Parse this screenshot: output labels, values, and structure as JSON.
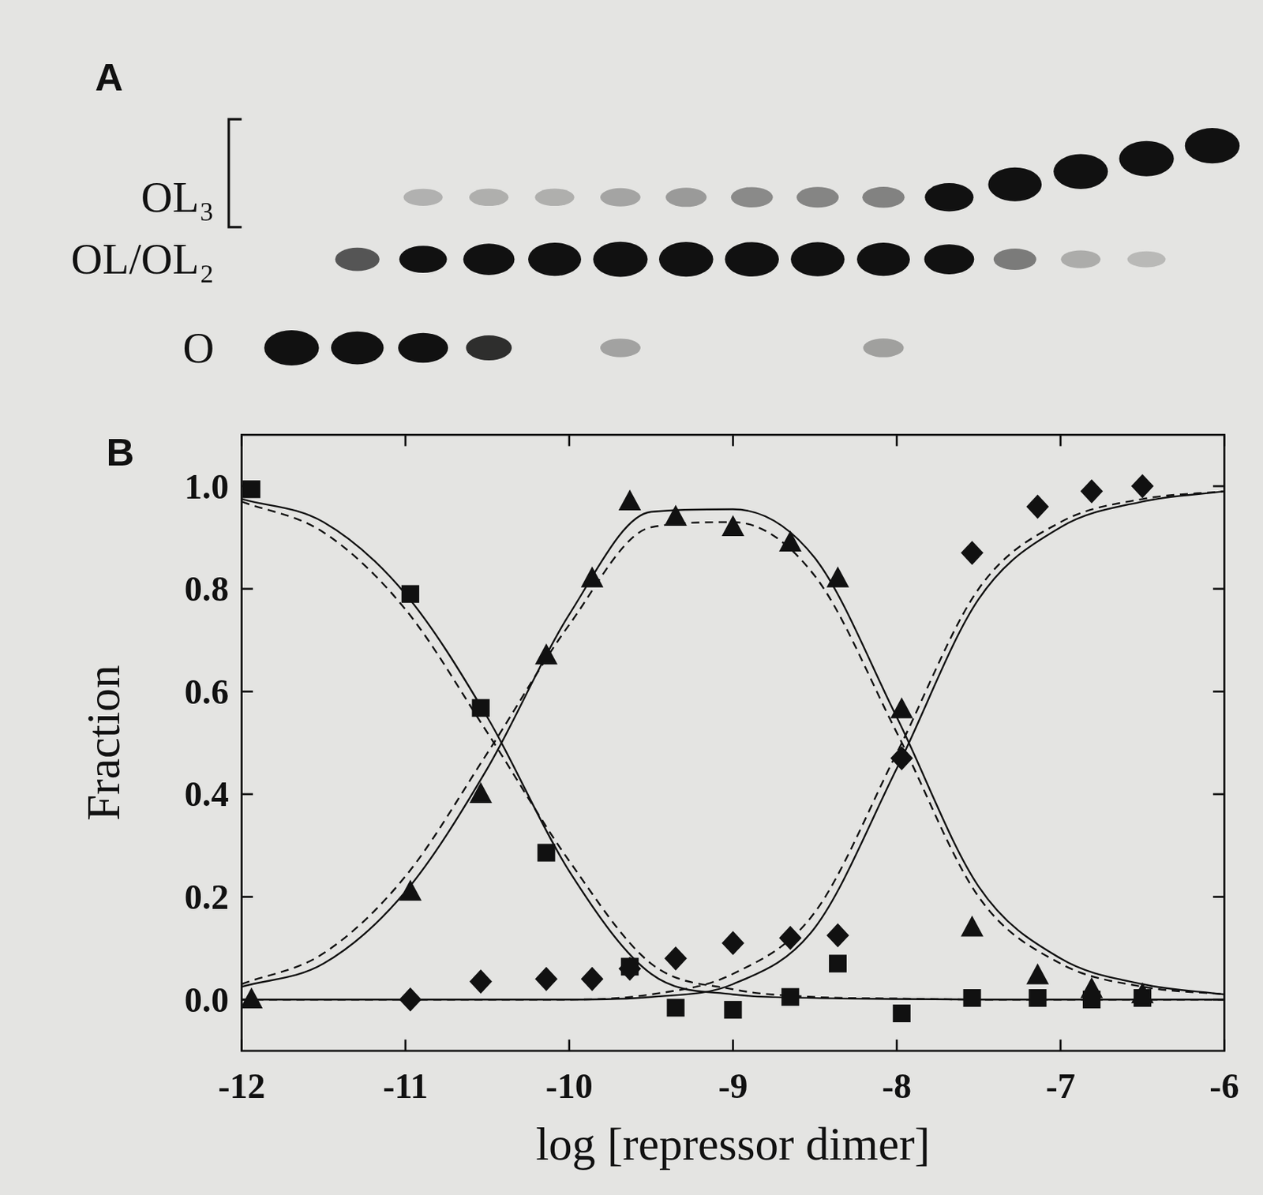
{
  "chart_data": {
    "type": "scatter",
    "panel_label": "B",
    "x_label": "log [repressor dimer]",
    "y_label": "Fraction",
    "xlim": [
      -12,
      -6
    ],
    "xticks": [
      -12,
      -11,
      -10,
      -9,
      -8,
      -7,
      -6
    ],
    "ylim": [
      -0.1,
      1.1
    ],
    "yticks": [
      {
        "value": 0,
        "label": "0.0"
      },
      0.2,
      0.4,
      0.6,
      0.8,
      {
        "value": 1,
        "label": "1.0"
      }
    ],
    "grid": false,
    "series": [
      {
        "type": "scatter",
        "marker": "square",
        "color": "#111111",
        "x": [
          -11.94,
          -10.97,
          -10.54,
          -10.14,
          -9.86,
          -9.63,
          -9.35,
          -9.0,
          -8.65,
          -8.36,
          -7.97,
          -7.54,
          -7.14,
          -6.81,
          -6.5
        ],
        "values": [
          0.994,
          0.79,
          0.568,
          0.286,
          null,
          0.064,
          -0.016,
          -0.02,
          0.005,
          0.07,
          -0.027,
          0.003,
          0.003,
          0.0,
          0.003
        ]
      },
      {
        "type": "scatter",
        "marker": "triangle",
        "color": "#111111",
        "x": [
          -11.94,
          -10.97,
          -10.54,
          -10.14,
          -9.86,
          -9.63,
          -9.35,
          -9.0,
          -8.65,
          -8.36,
          -7.97,
          -7.54,
          -7.14,
          -6.81,
          -6.5
        ],
        "values": [
          0.0,
          0.21,
          0.4,
          0.67,
          0.82,
          0.97,
          0.94,
          0.92,
          0.89,
          0.82,
          0.565,
          0.14,
          0.047,
          0.02,
          0.01
        ]
      },
      {
        "type": "scatter",
        "marker": "diamond",
        "color": "#111111",
        "x": [
          -11.94,
          -10.97,
          -10.54,
          -10.14,
          -9.86,
          -9.63,
          -9.35,
          -9.0,
          -8.65,
          -8.36,
          -7.97,
          -7.54,
          -7.14,
          -6.81,
          -6.5
        ],
        "values": [
          null,
          0.0,
          0.035,
          0.04,
          0.04,
          0.06,
          0.08,
          0.11,
          0.12,
          0.125,
          0.47,
          0.87,
          0.96,
          0.99,
          1.0
        ]
      },
      {
        "type": "line",
        "line_style": "solid",
        "color": "#111111",
        "x": [
          -12,
          -11.5,
          -11,
          -10.5,
          -10,
          -9.5,
          -9,
          -8.5,
          -8,
          -7.5,
          -7,
          -6.5,
          -6
        ],
        "values": [
          0.975,
          0.93,
          0.79,
          0.55,
          0.25,
          0.05,
          0.01,
          0.003,
          0.001,
          0,
          0,
          0,
          0
        ]
      },
      {
        "type": "line",
        "line_style": "dashed",
        "color": "#111111",
        "x": [
          -12,
          -11.5,
          -11,
          -10.5,
          -10,
          -9.5,
          -9,
          -8.5,
          -8,
          -7.5,
          -7,
          -6.5,
          -6
        ],
        "values": [
          0.97,
          0.91,
          0.76,
          0.52,
          0.27,
          0.07,
          0.02,
          0.005,
          0.002,
          0,
          0,
          0,
          0
        ]
      },
      {
        "type": "line",
        "line_style": "solid",
        "color": "#111111",
        "x": [
          -12,
          -11.5,
          -11,
          -10.5,
          -10,
          -9.5,
          -9,
          -8.5,
          -8,
          -7.5,
          -7,
          -6.5,
          -6
        ],
        "values": [
          0.025,
          0.07,
          0.21,
          0.45,
          0.75,
          0.95,
          0.955,
          0.86,
          0.55,
          0.22,
          0.08,
          0.03,
          0.01
        ]
      },
      {
        "type": "line",
        "line_style": "dashed",
        "color": "#111111",
        "x": [
          -12,
          -11.5,
          -11,
          -10.5,
          -10,
          -9.5,
          -9,
          -8.5,
          -8,
          -7.5,
          -7,
          -6.5,
          -6
        ],
        "values": [
          0.03,
          0.09,
          0.24,
          0.48,
          0.73,
          0.92,
          0.93,
          0.825,
          0.52,
          0.2,
          0.07,
          0.025,
          0.01
        ]
      },
      {
        "type": "line",
        "line_style": "solid",
        "color": "#111111",
        "x": [
          -12,
          -11.5,
          -11,
          -10.5,
          -10,
          -9.5,
          -9,
          -8.5,
          -8,
          -7.5,
          -7,
          -6.5,
          -6
        ],
        "values": [
          0,
          0,
          0,
          0,
          0,
          0.005,
          0.03,
          0.14,
          0.45,
          0.78,
          0.92,
          0.97,
          0.99
        ]
      },
      {
        "type": "line",
        "line_style": "dashed",
        "color": "#111111",
        "x": [
          -12,
          -11.5,
          -11,
          -10.5,
          -10,
          -9.5,
          -9,
          -8.5,
          -8,
          -7.5,
          -7,
          -6.5,
          -6
        ],
        "values": [
          0,
          0,
          0,
          0,
          0,
          0.01,
          0.05,
          0.17,
          0.48,
          0.8,
          0.93,
          0.975,
          0.99
        ]
      }
    ]
  },
  "gel": {
    "panel_label": "A",
    "rows": [
      {
        "label": "OL₃"
      },
      {
        "label": "OL/OL₂"
      },
      {
        "label": "O"
      }
    ]
  }
}
